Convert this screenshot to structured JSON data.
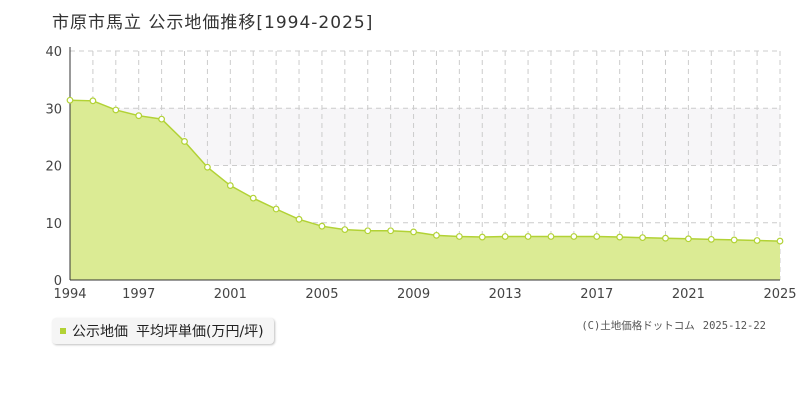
{
  "title": "市原市馬立 公示地価推移[1994-2025]",
  "colors": {
    "area_fill": "#dbeb94",
    "line": "#b2d235",
    "marker_fill": "#ffffff",
    "grid": "#cccccc",
    "band": "#f7f6f8",
    "legend_swatch": "#b2d235"
  },
  "legend": {
    "series_name": "公示地価",
    "label": "平均坪単価(万円/坪)"
  },
  "credit": {
    "source": "(C)土地価格ドットコム",
    "date": "2025-12-22"
  },
  "chart_data": {
    "type": "area",
    "title": "市原市馬立 公示地価推移[1994-2025]",
    "xlabel": "",
    "ylabel": "",
    "xlim": [
      1994,
      2025
    ],
    "ylim": [
      0,
      40
    ],
    "y_ticks": [
      0,
      10,
      20,
      30,
      40
    ],
    "x_tick_labels": [
      "1994",
      "1997",
      "2001",
      "2005",
      "2009",
      "2013",
      "2017",
      "2021",
      "2025"
    ],
    "grid": true,
    "legend_position": "bottom-left",
    "series": [
      {
        "name": "公示地価",
        "x": [
          1994,
          1995,
          1996,
          1997,
          1998,
          1999,
          2000,
          2001,
          2002,
          2003,
          2004,
          2005,
          2006,
          2007,
          2008,
          2009,
          2010,
          2011,
          2012,
          2013,
          2014,
          2015,
          2016,
          2017,
          2018,
          2019,
          2020,
          2021,
          2022,
          2023,
          2024,
          2025
        ],
        "values": [
          31.4,
          31.3,
          29.7,
          28.7,
          28.1,
          24.2,
          19.7,
          16.5,
          14.3,
          12.4,
          10.6,
          9.4,
          8.8,
          8.6,
          8.6,
          8.4,
          7.8,
          7.6,
          7.5,
          7.6,
          7.6,
          7.6,
          7.6,
          7.6,
          7.5,
          7.4,
          7.3,
          7.2,
          7.1,
          7.0,
          6.9,
          6.8
        ]
      }
    ]
  }
}
